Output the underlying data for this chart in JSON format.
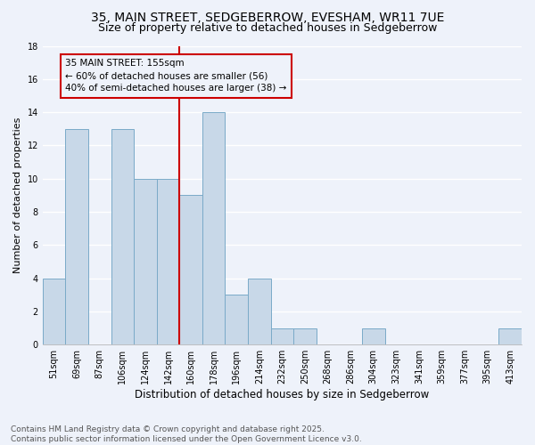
{
  "title": "35, MAIN STREET, SEDGEBERROW, EVESHAM, WR11 7UE",
  "subtitle": "Size of property relative to detached houses in Sedgeberrow",
  "xlabel": "Distribution of detached houses by size in Sedgeberrow",
  "ylabel": "Number of detached properties",
  "categories": [
    "51sqm",
    "69sqm",
    "87sqm",
    "106sqm",
    "124sqm",
    "142sqm",
    "160sqm",
    "178sqm",
    "196sqm",
    "214sqm",
    "232sqm",
    "250sqm",
    "268sqm",
    "286sqm",
    "304sqm",
    "323sqm",
    "341sqm",
    "359sqm",
    "377sqm",
    "395sqm",
    "413sqm"
  ],
  "values": [
    4,
    13,
    0,
    13,
    10,
    10,
    9,
    14,
    3,
    4,
    1,
    1,
    0,
    0,
    1,
    0,
    0,
    0,
    0,
    0,
    1
  ],
  "bar_color": "#c8d8e8",
  "bar_edge_color": "#7aaac8",
  "background_color": "#eef2fa",
  "grid_color": "#ffffff",
  "vline_color": "#cc0000",
  "annotation_text": "35 MAIN STREET: 155sqm\n← 60% of detached houses are smaller (56)\n40% of semi-detached houses are larger (38) →",
  "annotation_box_color": "#cc0000",
  "ylim": [
    0,
    18
  ],
  "yticks": [
    0,
    2,
    4,
    6,
    8,
    10,
    12,
    14,
    16,
    18
  ],
  "footer": "Contains HM Land Registry data © Crown copyright and database right 2025.\nContains public sector information licensed under the Open Government Licence v3.0.",
  "title_fontsize": 10,
  "subtitle_fontsize": 9,
  "xlabel_fontsize": 8.5,
  "ylabel_fontsize": 8,
  "tick_fontsize": 7,
  "footer_fontsize": 6.5
}
